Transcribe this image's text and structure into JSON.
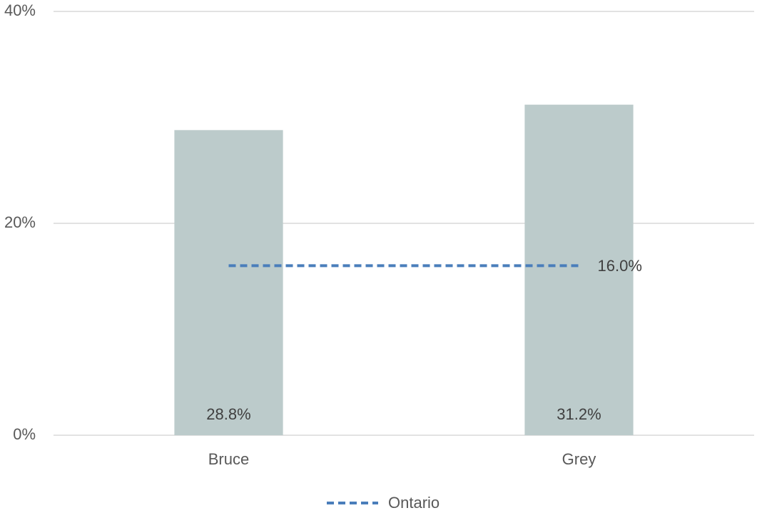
{
  "chart_data": {
    "type": "bar",
    "categories": [
      "Bruce",
      "Grey"
    ],
    "values": [
      28.8,
      31.2
    ],
    "value_labels": [
      "28.8%",
      "31.2%"
    ],
    "color": "#bccbcb",
    "series": [
      {
        "name": "Ontario",
        "type": "line",
        "line_style": "dashed",
        "color": "#4a7ebb",
        "values": [
          16.0,
          16.0
        ],
        "value_labels": [
          null,
          "16.0%"
        ]
      }
    ],
    "ylim": [
      0,
      40
    ],
    "yticks": [
      {
        "value": 0,
        "label": "0%"
      },
      {
        "value": 20,
        "label": "20%"
      },
      {
        "value": 40,
        "label": "40%"
      }
    ],
    "grid": true,
    "legend": "bottom"
  }
}
